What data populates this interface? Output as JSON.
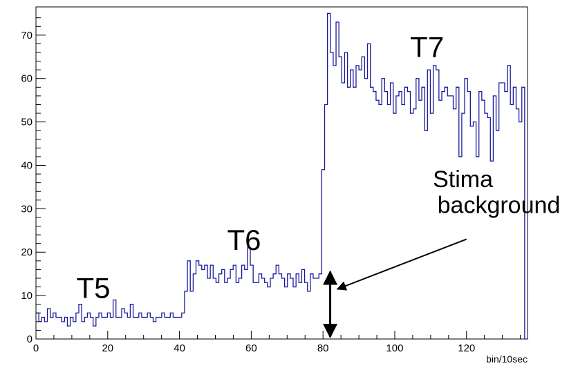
{
  "chart_data": {
    "type": "line",
    "step": true,
    "xlabel": "bin/10sec",
    "ylabel": "",
    "xlim": [
      0,
      137
    ],
    "ylim": [
      0,
      76.5
    ],
    "x_ticks": [
      0,
      20,
      40,
      60,
      80,
      100,
      120
    ],
    "y_ticks": [
      0,
      10,
      20,
      30,
      40,
      50,
      60,
      70
    ],
    "grid": false,
    "legend": "none",
    "colors": {
      "line": "#1a1a9c",
      "axis": "#000000",
      "arrow": "#000000"
    },
    "series": [
      {
        "values": [
          6,
          4,
          5,
          4,
          7,
          5,
          6,
          5,
          5,
          4,
          5,
          3,
          5,
          4,
          6,
          8,
          4,
          5,
          6,
          5,
          3,
          5,
          6,
          5,
          5,
          6,
          5,
          9,
          5,
          5,
          7,
          6,
          5,
          8,
          5,
          5,
          6,
          5,
          5,
          6,
          5,
          4,
          5,
          5,
          6,
          5,
          5,
          6,
          5,
          5,
          5,
          6,
          11,
          18,
          11,
          15,
          18,
          17,
          16,
          17,
          14,
          17,
          14,
          13,
          15,
          16,
          13,
          14,
          16,
          17,
          13,
          14,
          17,
          16,
          21,
          17,
          13,
          13,
          15,
          14,
          13,
          12,
          14,
          15,
          17,
          15,
          14,
          12,
          15,
          14,
          12,
          15,
          13,
          16,
          13,
          11,
          15,
          14,
          14,
          15,
          39,
          54,
          75,
          66,
          63,
          73,
          65,
          59,
          66,
          58,
          62,
          58,
          63,
          62,
          65,
          60,
          68,
          58,
          57,
          55,
          54,
          60,
          57,
          54,
          59,
          52,
          56,
          57,
          54,
          58,
          57,
          52,
          53,
          60,
          55,
          58,
          48,
          62,
          52,
          63,
          62,
          55,
          57,
          58,
          56,
          56,
          53,
          58,
          42,
          52,
          60,
          57,
          49,
          50,
          42,
          57,
          55,
          52,
          51,
          41,
          56,
          48,
          59,
          59,
          57,
          63,
          54,
          58,
          53,
          50,
          58,
          0
        ]
      }
    ],
    "annotations": [
      {
        "text": "T5",
        "x": 16,
        "y": 9.5
      },
      {
        "text": "T6",
        "x": 58,
        "y": 20.5
      },
      {
        "text": "T7",
        "x": 109,
        "y": 65
      },
      {
        "text": "Stima",
        "x": 119,
        "y": 35
      },
      {
        "text": "background",
        "x": 129,
        "y": 29
      }
    ],
    "arrows": [
      {
        "name": "background-level-arrow",
        "x1": 82,
        "y1": 0.5,
        "x2": 82,
        "y2": 15.5,
        "double": true
      },
      {
        "name": "pointer-arrow",
        "x1": 120,
        "y1": 23,
        "x2": 84,
        "y2": 11.5,
        "double": false
      }
    ]
  }
}
